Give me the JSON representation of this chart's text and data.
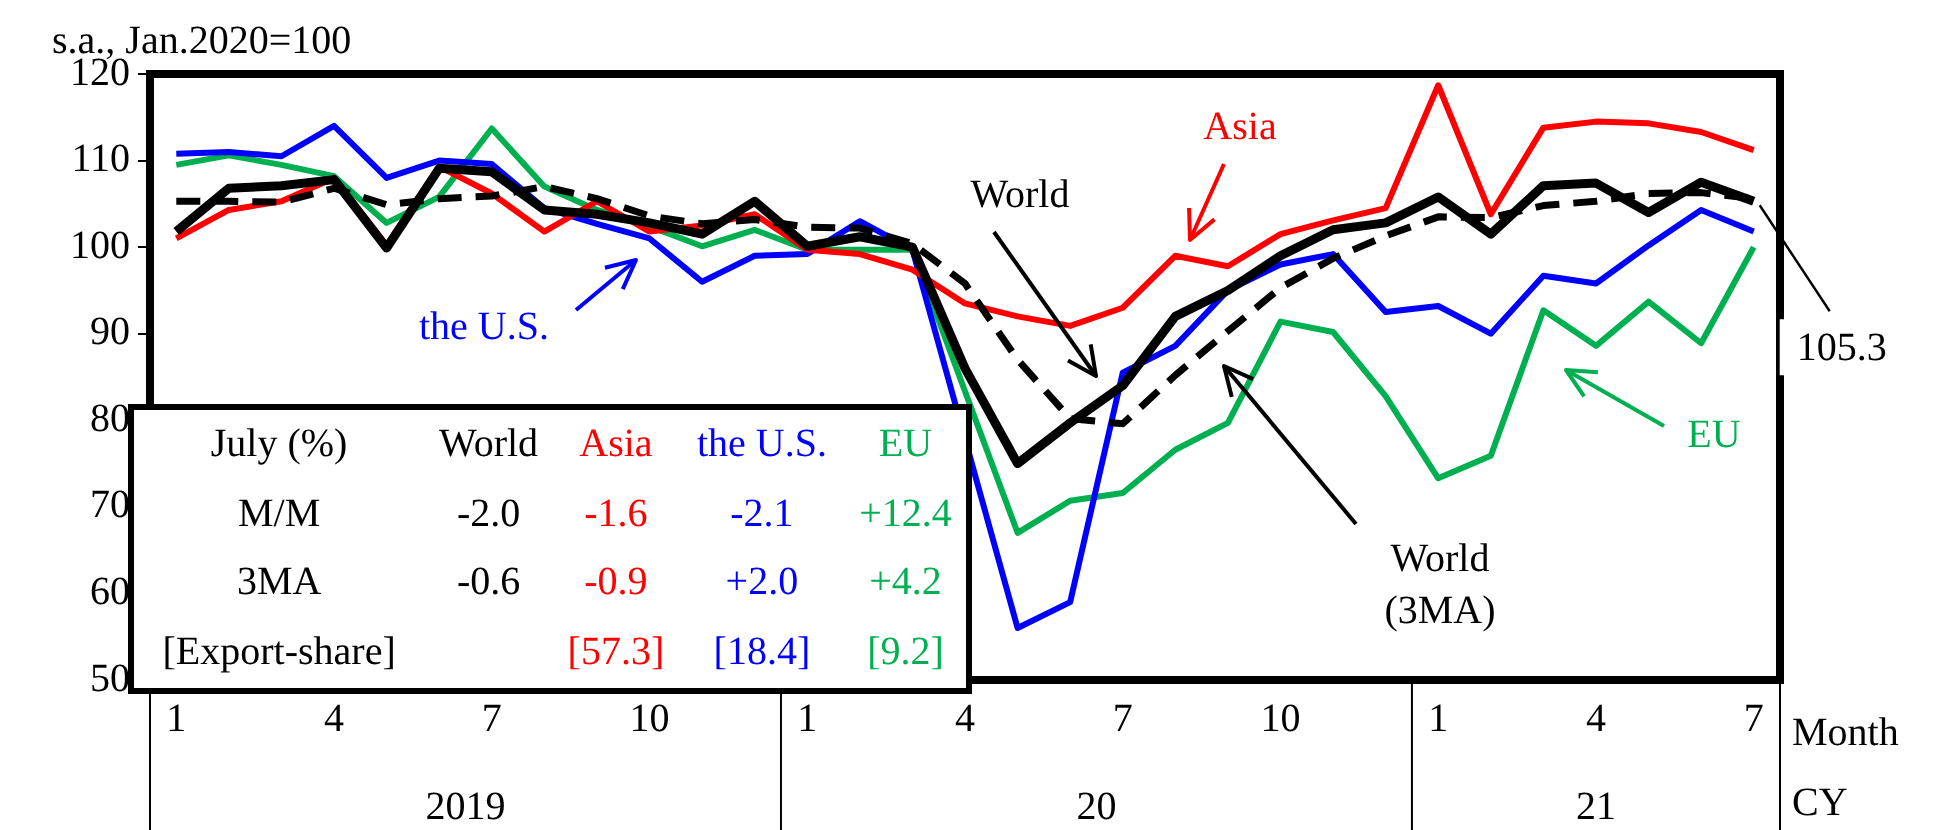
{
  "chart_data": {
    "type": "line",
    "ylabel": "s.a., Jan.2020=100",
    "categories": [
      "1",
      null,
      null,
      "4",
      null,
      null,
      "7",
      null,
      null,
      "10",
      null,
      null,
      "1",
      null,
      null,
      "4",
      null,
      null,
      "7",
      null,
      null,
      "10",
      null,
      null,
      "1",
      null,
      null,
      "4",
      null,
      null,
      "7"
    ],
    "ylim": [
      50,
      120
    ],
    "yticks": [
      50,
      60,
      70,
      80,
      90,
      100,
      110,
      120
    ],
    "grid": false,
    "legend": false,
    "marker": "none",
    "series": [
      {
        "name": "World",
        "color": "#000000",
        "line_style": "solid",
        "values": [
          101.8,
          106.8,
          107.1,
          107.8,
          99.9,
          109.1,
          108.7,
          104.3,
          103.8,
          102.8,
          101.5,
          105.3,
          100.1,
          101.2,
          100,
          86,
          75,
          79.7,
          84,
          92,
          95,
          99,
          102,
          102.8,
          105.8,
          101.5,
          107.1,
          107.4,
          104,
          107.5,
          105.3
        ],
        "value_labels": [
          null,
          null,
          null,
          null,
          null,
          null,
          null,
          null,
          null,
          null,
          null,
          null,
          null,
          null,
          null,
          null,
          null,
          null,
          null,
          null,
          null,
          null,
          null,
          null,
          null,
          null,
          null,
          null,
          null,
          null,
          "105.3"
        ]
      },
      {
        "name": "World (3MA)",
        "color": "#000000",
        "line_style": "dashed",
        "values": [
          105.3,
          105.3,
          105.2,
          106.8,
          104.9,
          105.6,
          105.9,
          107,
          105.6,
          103.6,
          102.7,
          103.2,
          102.3,
          102.2,
          100.4,
          95.8,
          87,
          80.2,
          79.6,
          85.2,
          90.3,
          95.3,
          98.7,
          101.3,
          103.5,
          103.4,
          104.8,
          105.3,
          106.2,
          106.3,
          105.6
        ]
      },
      {
        "name": "Asia",
        "color": "#ff0000",
        "line_style": "solid",
        "values": [
          101,
          104.3,
          105.3,
          108,
          100.2,
          109.3,
          106.2,
          101.8,
          105.3,
          101.8,
          102.5,
          103.8,
          99.7,
          99.2,
          97.4,
          93.5,
          92,
          90.9,
          93,
          99,
          97.8,
          101.5,
          103.1,
          104.5,
          118.7,
          103.8,
          113.8,
          114.5,
          114.3,
          113.3,
          111.2
        ]
      },
      {
        "name": "the U.S.",
        "color": "#0000ff",
        "line_style": "solid",
        "values": [
          110.8,
          111,
          110.5,
          114,
          108,
          110,
          109.6,
          104.5,
          102.7,
          101,
          96,
          99,
          99.2,
          103,
          99.7,
          null,
          56,
          59,
          85.5,
          88.6,
          95,
          98,
          99.2,
          92.5,
          93.2,
          90,
          96.7,
          95.8,
          100.2,
          104.3,
          101.8
        ]
      },
      {
        "name": "EU",
        "color": "#00b050",
        "line_style": "solid",
        "values": [
          109.5,
          110.6,
          109.5,
          108.2,
          102.8,
          105.8,
          113.7,
          107,
          104.3,
          102.4,
          100.1,
          102,
          99.7,
          99.7,
          99.7,
          null,
          67,
          70.7,
          71.6,
          76.6,
          79.7,
          91.4,
          90.2,
          82.8,
          73.3,
          75.9,
          92.7,
          88.6,
          93.7,
          88.9,
          100
        ]
      }
    ],
    "annotations": [
      "July (%)",
      "World",
      "Asia",
      "the U.S.",
      "EU",
      "M/M",
      "-2.0",
      "-1.6",
      "-2.1",
      "+12.4",
      "3MA",
      "-0.6",
      "-0.9",
      "+2.0",
      "+4.2",
      "[Export-share]",
      "[57.3]",
      "[18.4]",
      "[9.2]",
      "2019",
      "20",
      "21",
      "Month",
      "CY"
    ]
  }
}
